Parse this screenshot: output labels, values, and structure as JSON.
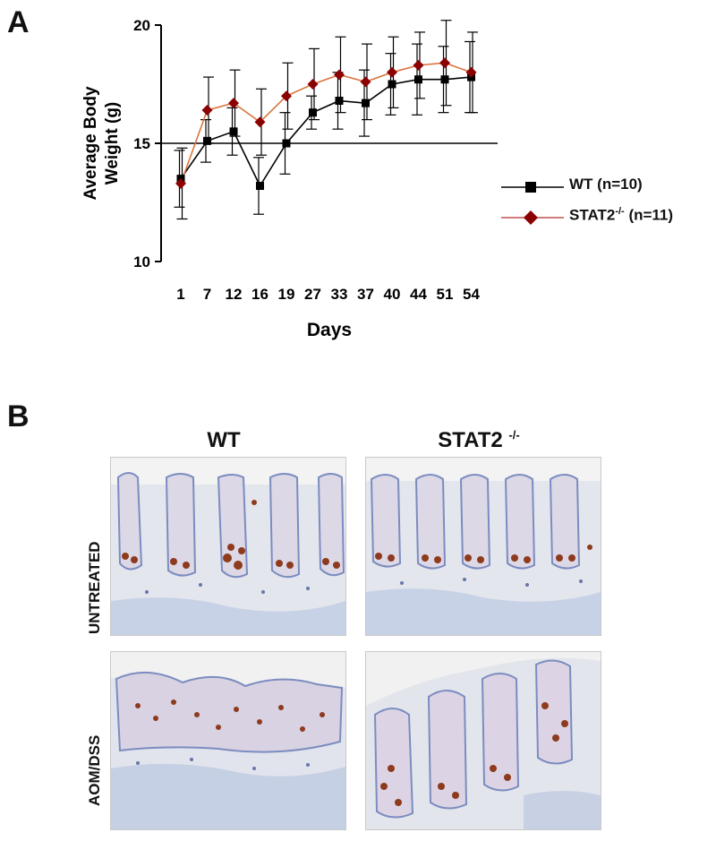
{
  "panel_a": {
    "letter": "A"
  },
  "panel_b": {
    "letter": "B"
  },
  "chart_data": {
    "type": "line",
    "xlabel": "Days",
    "ylabel_line1": "Average Body",
    "ylabel_line2": "Weight (g)",
    "categories": [
      "1",
      "7",
      "12",
      "16",
      "19",
      "27",
      "33",
      "37",
      "40",
      "44",
      "51",
      "54"
    ],
    "ylim": [
      10,
      20
    ],
    "yticks": [
      "10",
      "15",
      "20"
    ],
    "reference_line": 15,
    "series": [
      {
        "name": "WT (n=10)",
        "marker": "square",
        "color": "#000000",
        "values": [
          13.5,
          15.1,
          15.5,
          13.2,
          15.0,
          16.3,
          16.8,
          16.7,
          17.5,
          17.7,
          17.7,
          17.8
        ],
        "error": [
          1.2,
          0.9,
          1.0,
          1.2,
          1.3,
          0.7,
          1.2,
          1.4,
          1.3,
          1.5,
          1.4,
          1.5
        ]
      },
      {
        "name_main": "STAT2",
        "name_sup": "-/-",
        "name_tail": " (n=11)",
        "marker": "diamond",
        "color": "#8b0000",
        "line_color": "#d9743f",
        "values": [
          13.3,
          16.4,
          16.7,
          15.9,
          17.0,
          17.5,
          17.9,
          17.6,
          18.0,
          18.3,
          18.4,
          18.0
        ],
        "error": [
          1.5,
          1.4,
          1.4,
          1.4,
          1.4,
          1.5,
          1.6,
          1.6,
          1.5,
          1.4,
          1.8,
          1.7
        ]
      }
    ],
    "legend_position": "right"
  },
  "histology": {
    "columns": [
      {
        "main": "WT",
        "sup": ""
      },
      {
        "main": "STAT2 ",
        "sup": "-/-"
      }
    ],
    "rows": [
      "UNTREATED",
      "AOM/DSS"
    ]
  }
}
